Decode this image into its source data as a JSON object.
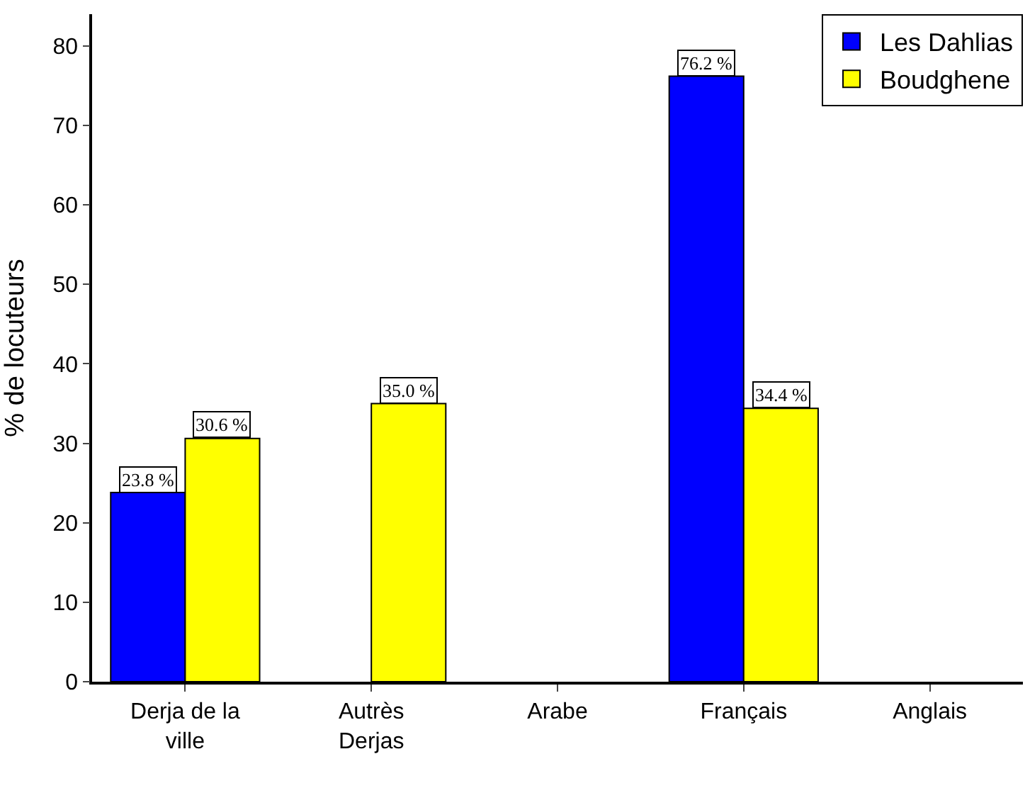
{
  "chart_data": {
    "type": "bar",
    "ylabel": "% de locuteurs",
    "categories": [
      "Derja de la ville",
      "Autrès Derjas",
      "Arabe",
      "Français",
      "Anglais"
    ],
    "series": [
      {
        "name": "Les Dahlias",
        "color": "#0000ff",
        "values": [
          23.8,
          null,
          null,
          76.2,
          null
        ],
        "value_labels": [
          "23.8 %",
          null,
          null,
          "76.2 %",
          null
        ]
      },
      {
        "name": "Boudghene",
        "color": "#ffff00",
        "values": [
          30.6,
          35.0,
          null,
          34.4,
          null
        ],
        "value_labels": [
          "30.6 %",
          "35.0 %",
          null,
          "34.4 %",
          null
        ]
      }
    ],
    "ylim": [
      0,
      84
    ],
    "yticks": [
      0,
      10,
      20,
      30,
      40,
      50,
      60,
      70,
      80
    ],
    "legend": "top right"
  }
}
